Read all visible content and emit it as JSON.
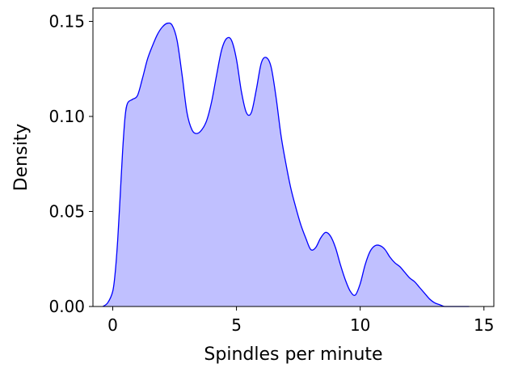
{
  "chart_data": {
    "type": "area",
    "title": "",
    "xlabel": "Spindles per minute",
    "ylabel": "Density",
    "xlim": [
      -0.8,
      15.4
    ],
    "ylim": [
      0,
      0.157
    ],
    "xticks": [
      0,
      5,
      10,
      15
    ],
    "xtick_labels": [
      "0",
      "5",
      "10",
      "15"
    ],
    "yticks": [
      0.0,
      0.05,
      0.1,
      0.15
    ],
    "ytick_labels": [
      "0.00",
      "0.05",
      "0.10",
      "0.15"
    ],
    "grid": false,
    "legend": false,
    "colors": {
      "line": "#0000ff",
      "fill": "#c0c0ff"
    },
    "series": [
      {
        "x": [
          -0.4,
          -0.2,
          0.0,
          0.1,
          0.2,
          0.3,
          0.4,
          0.5,
          0.6,
          0.8,
          1.0,
          1.2,
          1.4,
          1.6,
          1.8,
          2.0,
          2.2,
          2.4,
          2.6,
          2.8,
          3.0,
          3.2,
          3.4,
          3.6,
          3.8,
          4.0,
          4.2,
          4.4,
          4.6,
          4.8,
          5.0,
          5.2,
          5.4,
          5.6,
          5.8,
          6.0,
          6.2,
          6.4,
          6.6,
          6.8,
          7.0,
          7.2,
          7.4,
          7.6,
          7.8,
          8.0,
          8.2,
          8.4,
          8.6,
          8.8,
          9.0,
          9.2,
          9.4,
          9.6,
          9.8,
          10.0,
          10.2,
          10.4,
          10.6,
          10.8,
          11.0,
          11.2,
          11.4,
          11.6,
          11.8,
          12.0,
          12.2,
          12.4,
          12.6,
          12.8,
          13.0,
          13.2,
          13.4,
          13.6,
          13.8,
          14.0,
          14.2,
          14.4
        ],
        "y": [
          0.0,
          0.002,
          0.008,
          0.018,
          0.035,
          0.058,
          0.082,
          0.1,
          0.107,
          0.109,
          0.111,
          0.12,
          0.13,
          0.137,
          0.143,
          0.147,
          0.149,
          0.148,
          0.14,
          0.122,
          0.102,
          0.093,
          0.091,
          0.093,
          0.098,
          0.108,
          0.122,
          0.135,
          0.141,
          0.14,
          0.13,
          0.113,
          0.102,
          0.102,
          0.114,
          0.128,
          0.131,
          0.126,
          0.11,
          0.09,
          0.075,
          0.062,
          0.052,
          0.043,
          0.036,
          0.03,
          0.031,
          0.036,
          0.039,
          0.037,
          0.031,
          0.022,
          0.014,
          0.008,
          0.006,
          0.012,
          0.022,
          0.029,
          0.032,
          0.032,
          0.03,
          0.026,
          0.023,
          0.021,
          0.018,
          0.015,
          0.013,
          0.01,
          0.007,
          0.004,
          0.002,
          0.001,
          0.0,
          0.0,
          0.0,
          0.0,
          0.0,
          0.0
        ]
      }
    ]
  }
}
